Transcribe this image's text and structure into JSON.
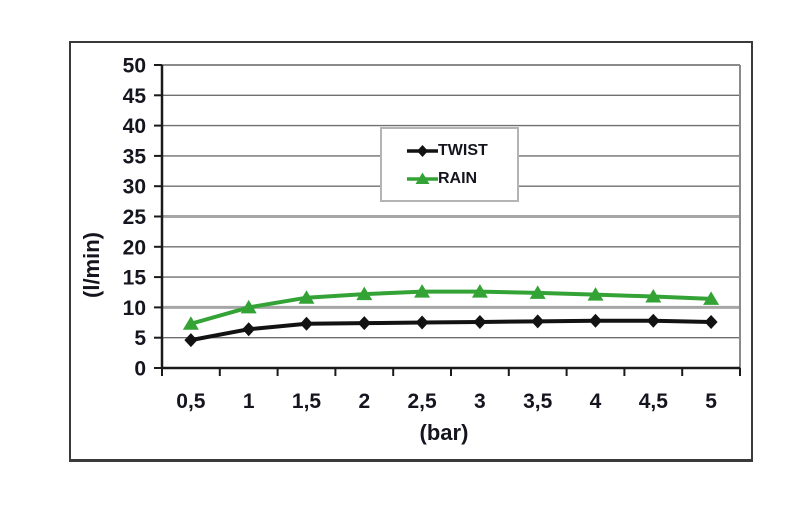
{
  "chart_data": {
    "type": "line",
    "title": "",
    "xlabel": "(bar)",
    "ylabel": "(l/min)",
    "x": [
      0.5,
      1,
      1.5,
      2,
      2.5,
      3,
      3.5,
      4,
      4.5,
      5
    ],
    "categories": [
      "0,5",
      "1",
      "1,5",
      "2",
      "2,5",
      "3",
      "3,5",
      "4",
      "4,5",
      "5"
    ],
    "series": [
      {
        "name": "TWIST",
        "marker": "diamond",
        "color": "#121212",
        "values": [
          4.6,
          6.4,
          7.3,
          7.4,
          7.5,
          7.6,
          7.7,
          7.8,
          7.8,
          7.6
        ]
      },
      {
        "name": "RAIN",
        "marker": "triangle",
        "color": "#34a336",
        "values": [
          7.3,
          10.0,
          11.6,
          12.2,
          12.6,
          12.6,
          12.4,
          12.1,
          11.8,
          11.4
        ]
      }
    ],
    "ylim": [
      0,
      50
    ],
    "ytick_step": 5,
    "grid": "horizontal",
    "emphasized_gridlines": [
      10,
      25
    ],
    "legend_position": "upper-center-box",
    "colors": {
      "axis": "#1a1a1a",
      "grid": "#6f6f6f",
      "grid_emphasis": "#a6a6a6",
      "plot_border": "#8a8a8a",
      "text": "#15151f",
      "legend_border": "#b4b4b4"
    }
  }
}
